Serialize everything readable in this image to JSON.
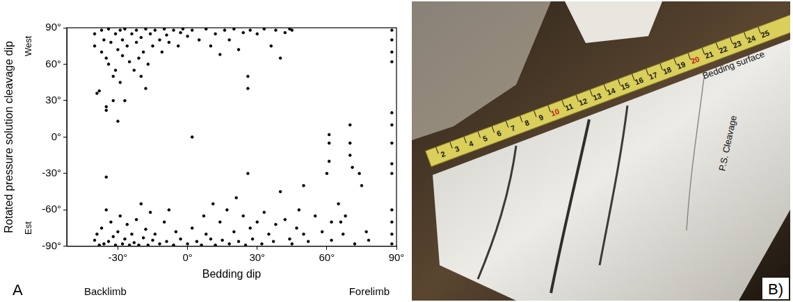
{
  "chart_data": {
    "type": "scatter",
    "panel": "A",
    "x_label": "Bedding dip",
    "y_label": "Rotated pressure solution cleavage dip",
    "annotations": {
      "y_top": "West",
      "y_bottom": "Est",
      "x_left": "Backlimb",
      "x_right": "Forelimb"
    },
    "xlim": [
      -52,
      90
    ],
    "xticks": [
      {
        "value": -30,
        "label": "-30°"
      },
      {
        "value": 0,
        "label": "0°"
      },
      {
        "value": 30,
        "label": "30°"
      },
      {
        "value": 60,
        "label": "60°"
      },
      {
        "value": 90,
        "label": "90°"
      }
    ],
    "ylim": [
      -90,
      90
    ],
    "yticks": [
      {
        "value": -90,
        "label": "-90°"
      },
      {
        "value": -60,
        "label": "-60°"
      },
      {
        "value": -30,
        "label": "-30°"
      },
      {
        "value": 0,
        "label": "0°"
      },
      {
        "value": 30,
        "label": "30°"
      },
      {
        "value": 60,
        "label": "60°"
      },
      {
        "value": 90,
        "label": "90°"
      }
    ],
    "grid": false,
    "color": "#000000",
    "marker": "circle",
    "x": [
      -40,
      -40,
      -39,
      -38,
      -37,
      -37,
      -36,
      -35,
      -35,
      -35,
      -34,
      -34,
      -33,
      -32,
      -32,
      -31,
      -31,
      -30,
      -30,
      -29,
      -29,
      -28,
      -28,
      -27,
      -27,
      -26,
      -25,
      -24,
      -23,
      -22,
      -22,
      -21,
      -20,
      -20,
      -19,
      -18,
      -18,
      -17,
      -16,
      -15,
      -14,
      -12,
      -11,
      -10,
      -9,
      -8,
      -6,
      -4,
      -3,
      -2,
      0,
      2,
      5,
      8,
      10,
      12,
      14,
      16,
      18,
      20,
      22,
      24,
      26,
      26,
      27,
      30,
      33,
      36,
      38,
      40,
      42,
      44,
      45,
      88,
      88,
      88,
      88,
      2,
      -40,
      -39,
      -38,
      -37,
      -36,
      -35,
      -35,
      -34,
      -33,
      -32,
      -31,
      -30,
      -29,
      -28,
      -27,
      -26,
      -25,
      -24,
      -23,
      -22,
      -21,
      -20,
      -19,
      -18,
      -17,
      -16,
      -15,
      -14,
      -12,
      -10,
      -9,
      -8,
      -6,
      -5,
      -3,
      0,
      2,
      4,
      6,
      7,
      8,
      10,
      11,
      12,
      14,
      15,
      17,
      18,
      20,
      21,
      22,
      24,
      25,
      26,
      27,
      28,
      30,
      32,
      33,
      35,
      37,
      38,
      40,
      42,
      44,
      45,
      47,
      48,
      50,
      50,
      52,
      55,
      58,
      60,
      61,
      61,
      61,
      62,
      62,
      65,
      66,
      67,
      68,
      70,
      70,
      70,
      71,
      72,
      74,
      75,
      77,
      78,
      88,
      88,
      88,
      88,
      88,
      88,
      88,
      88,
      88
    ],
    "values": [
      75,
      85,
      36,
      38,
      88,
      70,
      80,
      65,
      25,
      22,
      89,
      60,
      78,
      50,
      30,
      85,
      55,
      72,
      13,
      88,
      45,
      80,
      67,
      30,
      89,
      75,
      62,
      85,
      55,
      78,
      88,
      65,
      50,
      82,
      70,
      40,
      89,
      60,
      85,
      75,
      88,
      80,
      70,
      89,
      84,
      78,
      88,
      75,
      86,
      89,
      83,
      88,
      80,
      89,
      75,
      85,
      68,
      88,
      80,
      89,
      72,
      86,
      40,
      50,
      88,
      85,
      89,
      75,
      88,
      65,
      86,
      89,
      88,
      88,
      80,
      70,
      62,
      0,
      -85,
      -80,
      -89,
      -75,
      -88,
      -60,
      -33,
      -86,
      -70,
      -82,
      -89,
      -78,
      -65,
      -88,
      -84,
      -72,
      -89,
      -80,
      -87,
      -68,
      -89,
      -55,
      -83,
      -76,
      -89,
      -62,
      -85,
      -80,
      -88,
      -70,
      -86,
      -60,
      -89,
      -78,
      -84,
      -88,
      -75,
      -86,
      -89,
      -65,
      -80,
      -84,
      -55,
      -89,
      -70,
      -85,
      -60,
      -88,
      -78,
      -50,
      -86,
      -65,
      -89,
      -30,
      -75,
      -84,
      -70,
      -88,
      -62,
      -80,
      -86,
      -72,
      -45,
      -68,
      -84,
      -88,
      -75,
      -60,
      -40,
      -80,
      -86,
      -65,
      -78,
      -30,
      2,
      -5,
      -20,
      -70,
      -85,
      -55,
      -70,
      -80,
      -65,
      10,
      -5,
      -15,
      -25,
      -88,
      -30,
      -40,
      -78,
      -85,
      20,
      10,
      -5,
      -22,
      -30,
      -60,
      -70,
      -80,
      -88
    ]
  },
  "photo": {
    "label": "B)",
    "annotations": [
      "Bedding surface",
      "P.S. Cleavage"
    ],
    "ruler_labels": [
      2,
      3,
      4,
      5,
      6,
      7,
      8,
      9,
      10,
      11,
      12,
      13,
      14,
      15,
      16,
      17,
      18,
      19,
      20,
      21,
      22,
      23,
      24,
      25
    ]
  }
}
